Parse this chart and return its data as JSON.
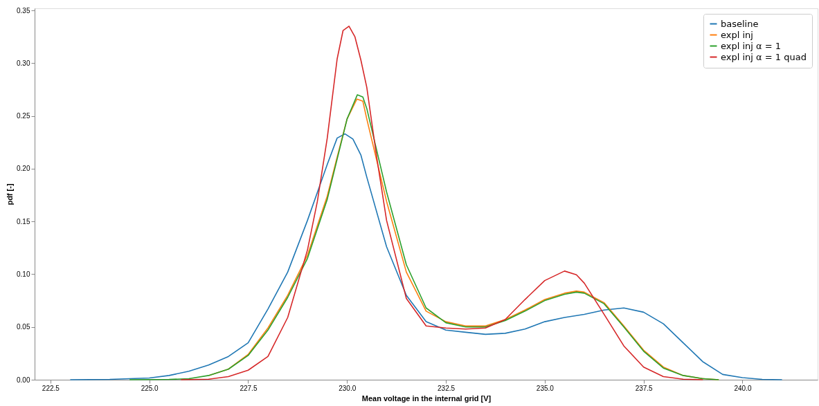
{
  "chart_data": {
    "type": "line",
    "xlabel": "Mean voltage in the internal grid [V]",
    "ylabel": "pdf [-]",
    "xlim": [
      222.1,
      241.9
    ],
    "ylim": [
      0,
      0.352
    ],
    "xticks": [
      {
        "value": 222.5,
        "label": "222.5"
      },
      {
        "value": 225,
        "label": "225.0"
      },
      {
        "value": 227.5,
        "label": "227.5"
      },
      {
        "value": 230,
        "label": "230.0"
      },
      {
        "value": 232.5,
        "label": "232.5"
      },
      {
        "value": 235,
        "label": "235.0"
      },
      {
        "value": 237.5,
        "label": "237.5"
      },
      {
        "value": 240,
        "label": "240.0"
      }
    ],
    "yticks": [
      {
        "value": 0,
        "label": "0.00"
      },
      {
        "value": 0.05,
        "label": "0.05"
      },
      {
        "value": 0.1,
        "label": "0.10"
      },
      {
        "value": 0.15,
        "label": "0.15"
      },
      {
        "value": 0.2,
        "label": "0.20"
      },
      {
        "value": 0.25,
        "label": "0.25"
      },
      {
        "value": 0.3,
        "label": "0.30"
      },
      {
        "value": 0.35,
        "label": "0.35"
      }
    ],
    "grid": false,
    "legend": "top right",
    "line_style": "solid",
    "marker": "none",
    "series": [
      {
        "name": "baseline",
        "color": "#1f77b4",
        "x": [
          223.0,
          224.0,
          225.0,
          225.5,
          226.0,
          226.5,
          227.0,
          227.5,
          228.0,
          228.5,
          229.0,
          229.5,
          229.75,
          229.95,
          230.15,
          230.35,
          230.5,
          231.0,
          231.5,
          232.0,
          232.5,
          233.0,
          233.5,
          234.0,
          234.5,
          235.0,
          235.5,
          236.0,
          236.5,
          237.0,
          237.5,
          238.0,
          238.5,
          239.0,
          239.5,
          240.0,
          240.5,
          241.0
        ],
        "values": [
          0,
          0.0003,
          0.0016,
          0.004,
          0.008,
          0.014,
          0.022,
          0.035,
          0.067,
          0.102,
          0.151,
          0.204,
          0.229,
          0.233,
          0.228,
          0.213,
          0.192,
          0.126,
          0.08,
          0.055,
          0.047,
          0.045,
          0.043,
          0.044,
          0.048,
          0.055,
          0.059,
          0.062,
          0.066,
          0.068,
          0.064,
          0.053,
          0.035,
          0.017,
          0.005,
          0.002,
          0.0003,
          0
        ]
      },
      {
        "name": "expl inj",
        "color": "#ff7f0e",
        "x": [
          226.5,
          227.0,
          227.5,
          228.0,
          228.5,
          229.0,
          229.5,
          229.75,
          230.0,
          230.25,
          230.4,
          230.5,
          231.0,
          231.5,
          232.0,
          232.5,
          233.0,
          233.5,
          234.0,
          234.5,
          235.0,
          235.5,
          235.8,
          236.0,
          236.5,
          237.0,
          237.5,
          238.0,
          238.5,
          239.0,
          239.4
        ],
        "values": [
          0.004,
          0.01,
          0.024,
          0.049,
          0.08,
          0.118,
          0.174,
          0.211,
          0.247,
          0.266,
          0.264,
          0.247,
          0.169,
          0.102,
          0.065,
          0.055,
          0.051,
          0.051,
          0.057,
          0.066,
          0.076,
          0.082,
          0.084,
          0.083,
          0.073,
          0.051,
          0.028,
          0.012,
          0.004,
          0.001,
          0
        ]
      },
      {
        "name": "expl inj α = 1",
        "color": "#2ca02c",
        "x": [
          224.5,
          225.5,
          226.0,
          226.5,
          227.0,
          227.5,
          228.0,
          228.5,
          229.0,
          229.5,
          229.75,
          230.0,
          230.26,
          230.4,
          230.5,
          231.0,
          231.5,
          232.0,
          232.5,
          233.0,
          233.5,
          234.0,
          234.5,
          235.0,
          235.5,
          235.8,
          236.0,
          236.5,
          237.0,
          237.5,
          238.0,
          238.5,
          239.0,
          239.4
        ],
        "values": [
          0,
          0.0003,
          0.001,
          0.004,
          0.01,
          0.023,
          0.047,
          0.078,
          0.115,
          0.171,
          0.209,
          0.247,
          0.27,
          0.268,
          0.257,
          0.178,
          0.109,
          0.068,
          0.054,
          0.05,
          0.05,
          0.056,
          0.065,
          0.075,
          0.081,
          0.083,
          0.082,
          0.072,
          0.05,
          0.027,
          0.011,
          0.004,
          0.001,
          0
        ]
      },
      {
        "name": "expl inj α = 1 quad",
        "color": "#d62728",
        "x": [
          225.8,
          226.5,
          227.0,
          227.5,
          228.0,
          228.5,
          229.0,
          229.25,
          229.5,
          229.75,
          229.9,
          230.05,
          230.2,
          230.35,
          230.5,
          230.75,
          231.0,
          231.5,
          232.0,
          232.5,
          233.0,
          233.5,
          234.0,
          234.5,
          235.0,
          235.5,
          235.8,
          236.0,
          236.5,
          237.0,
          237.5,
          238.0,
          238.5,
          239.0
        ],
        "values": [
          0,
          0.0005,
          0.003,
          0.009,
          0.022,
          0.059,
          0.123,
          0.169,
          0.229,
          0.304,
          0.331,
          0.335,
          0.325,
          0.303,
          0.277,
          0.211,
          0.151,
          0.077,
          0.051,
          0.049,
          0.048,
          0.049,
          0.057,
          0.076,
          0.094,
          0.103,
          0.0995,
          0.0915,
          0.062,
          0.032,
          0.012,
          0.003,
          0.0005,
          0
        ]
      }
    ]
  }
}
